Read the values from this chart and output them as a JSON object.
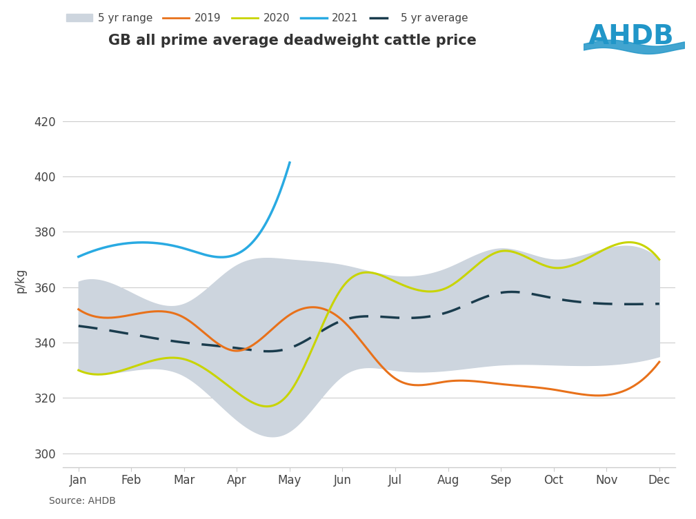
{
  "title": "GB all prime average deadweight cattle price",
  "ylabel": "p/kg",
  "source": "Source: AHDB",
  "months": [
    "Jan",
    "Feb",
    "Mar",
    "Apr",
    "May",
    "Jun",
    "Jul",
    "Aug",
    "Sep",
    "Oct",
    "Nov",
    "Dec"
  ],
  "ylim": [
    295,
    430
  ],
  "yticks": [
    300,
    320,
    340,
    360,
    380,
    400,
    420
  ],
  "line_2019": [
    352,
    350,
    349,
    337,
    350,
    348,
    327,
    326,
    325,
    323,
    321,
    333
  ],
  "line_2020": [
    330,
    331,
    334,
    322,
    322,
    360,
    362,
    360,
    373,
    367,
    374,
    370
  ],
  "line_2021": [
    371,
    376,
    374,
    372,
    405,
    null,
    null,
    null,
    null,
    null,
    null,
    null
  ],
  "line_5yr_avg": [
    346,
    343,
    340,
    338,
    338,
    348,
    349,
    351,
    358,
    356,
    354,
    354
  ],
  "band_upper": [
    362,
    358,
    354,
    368,
    370,
    368,
    364,
    367,
    374,
    370,
    374,
    370
  ],
  "band_lower": [
    330,
    330,
    328,
    312,
    308,
    328,
    330,
    330,
    332,
    332,
    332,
    335
  ],
  "color_2019": "#e8711a",
  "color_2020": "#c8d400",
  "color_2021": "#29aae2",
  "color_5yr_avg": "#1a3c4d",
  "color_band": "#cdd5de",
  "background_color": "#ffffff",
  "ahdb_color": "#2196c8",
  "title_color": "#333333",
  "source_color": "#555555"
}
